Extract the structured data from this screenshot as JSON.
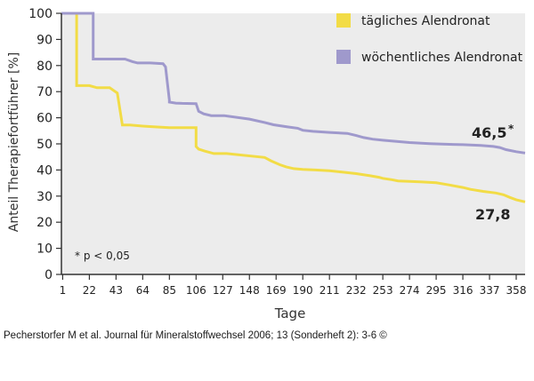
{
  "chart_data": {
    "type": "line",
    "ylabel": "Anteil Therapiefortführer [%]",
    "xlabel": "Tage",
    "ylim": [
      0,
      100
    ],
    "xlim": [
      0,
      365
    ],
    "yticks": [
      0,
      10,
      20,
      30,
      40,
      50,
      60,
      70,
      80,
      90,
      100
    ],
    "xticks": [
      1,
      22,
      43,
      64,
      85,
      106,
      127,
      148,
      169,
      190,
      211,
      232,
      253,
      274,
      295,
      316,
      337,
      358
    ],
    "grid": false,
    "legend_position": "top-right",
    "series": [
      {
        "name": "tägliches Alendronat",
        "color": "#f2dc46",
        "end_label": "27,8",
        "x": [
          0,
          12,
          12,
          22,
          28,
          38,
          44,
          44,
          48,
          54,
          64,
          74,
          85,
          98,
          106,
          106,
          108,
          113,
          120,
          130,
          160,
          165,
          172,
          177,
          183,
          190,
          200,
          211,
          221,
          232,
          243,
          250,
          253,
          260,
          265,
          274,
          284,
          295,
          305,
          316,
          322,
          332,
          342,
          348,
          353,
          358,
          365
        ],
        "y": [
          100,
          100,
          72.3,
          72.3,
          71.5,
          71.5,
          69.5,
          69.5,
          57.2,
          57.2,
          56.8,
          56.5,
          56.2,
          56.2,
          56.2,
          49,
          48,
          47.2,
          46.3,
          46.3,
          44.8,
          43.5,
          42,
          41.2,
          40.5,
          40.2,
          40,
          39.7,
          39.2,
          38.6,
          37.8,
          37.2,
          36.8,
          36.3,
          35.8,
          35.6,
          35.4,
          35.1,
          34.3,
          33.3,
          32.6,
          31.8,
          31.2,
          30.5,
          29.5,
          28.6,
          27.8
        ]
      },
      {
        "name": "wöchentliches Alendronat",
        "color": "#9f99cc",
        "end_label": "46,5",
        "end_label_mark": "*",
        "x": [
          0,
          25,
          25,
          40,
          50,
          56,
          60,
          70,
          80,
          82,
          85,
          85,
          90,
          95,
          106,
          108,
          112,
          118,
          128,
          148,
          160,
          167,
          178,
          186,
          190,
          198,
          211,
          225,
          232,
          238,
          245,
          253,
          265,
          274,
          290,
          300,
          316,
          330,
          340,
          345,
          350,
          358,
          365
        ],
        "y": [
          100,
          100,
          82.5,
          82.5,
          82.5,
          81.5,
          81,
          81,
          80.7,
          79.5,
          66.8,
          66,
          65.6,
          65.5,
          65.4,
          62.5,
          61.5,
          60.8,
          60.8,
          59.5,
          58.2,
          57.3,
          56.5,
          56,
          55.2,
          54.8,
          54.4,
          54,
          53.2,
          52.4,
          51.8,
          51.4,
          50.9,
          50.5,
          50.1,
          49.9,
          49.7,
          49.4,
          49,
          48.6,
          47.8,
          47,
          46.5
        ]
      }
    ],
    "annotation": "* p < 0,05"
  },
  "source_caption": "Pecherstorfer M et al. Journal für Mineralstoffwechsel 2006; 13 (Sonderheft 2): 3-6 ©"
}
